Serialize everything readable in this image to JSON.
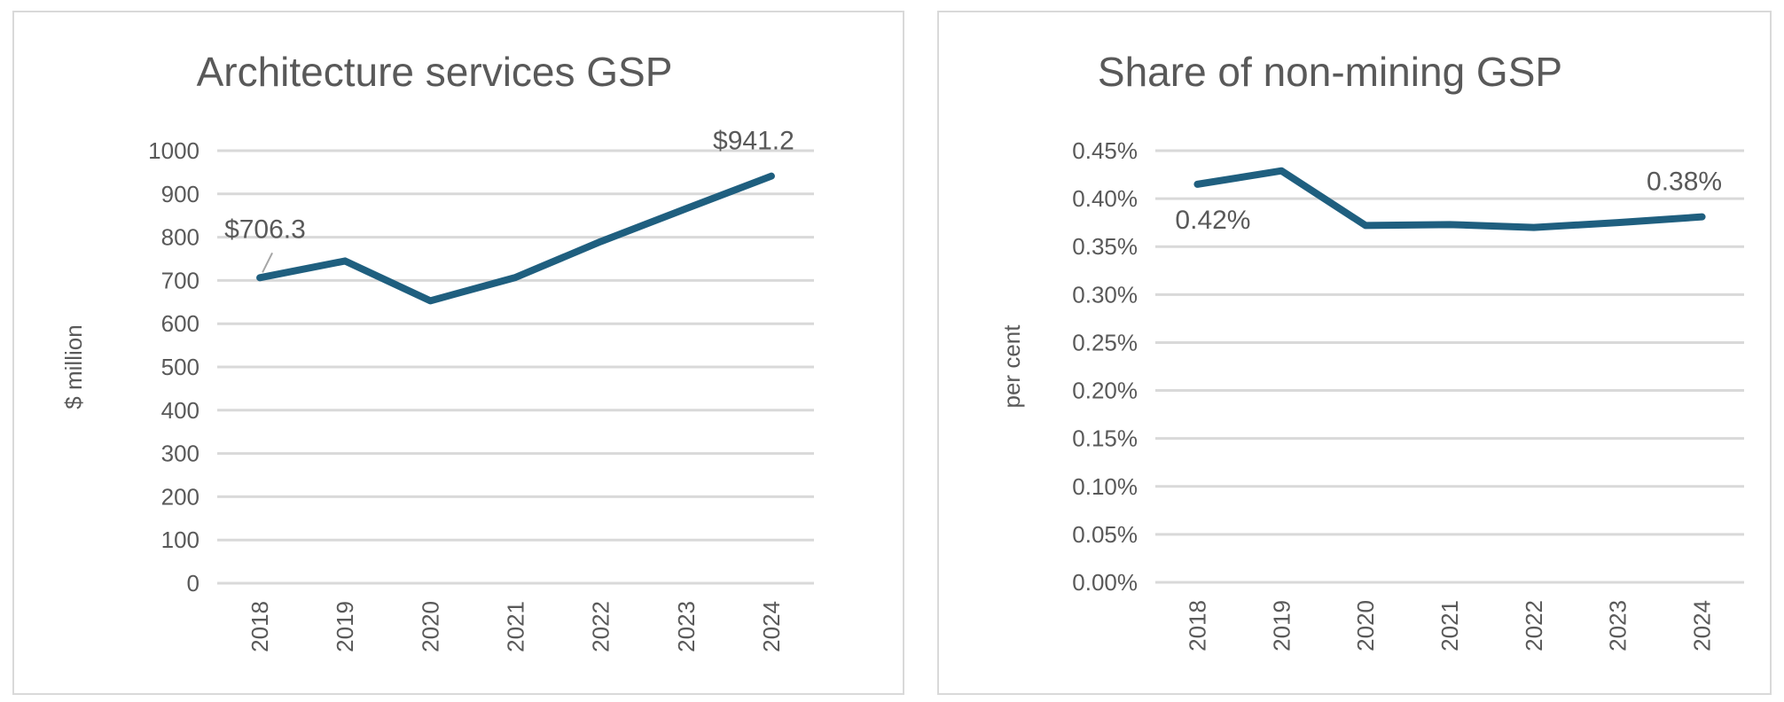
{
  "chart_data": [
    {
      "type": "line",
      "title": "Architecture services GSP",
      "xlabel": "",
      "ylabel": "$ million",
      "categories": [
        "2018",
        "2019",
        "2020",
        "2021",
        "2022",
        "2023",
        "2024"
      ],
      "values": [
        706.3,
        745,
        653,
        707,
        790,
        866,
        941.2
      ],
      "ylim": [
        0,
        1000
      ],
      "yticks": [
        0,
        100,
        200,
        300,
        400,
        500,
        600,
        700,
        800,
        900,
        1000
      ],
      "ytick_labels": [
        "0",
        "100",
        "200",
        "300",
        "400",
        "500",
        "600",
        "700",
        "800",
        "900",
        "1000"
      ],
      "grid": true,
      "line_color": "#1F5F7F",
      "annotations": [
        {
          "category": "2018",
          "text": "$706.3"
        },
        {
          "category": "2024",
          "text": "$941.2"
        }
      ]
    },
    {
      "type": "line",
      "title": "Share of non-mining GSP",
      "xlabel": "",
      "ylabel": "per cent",
      "categories": [
        "2018",
        "2019",
        "2020",
        "2021",
        "2022",
        "2023",
        "2024"
      ],
      "values": [
        0.415,
        0.429,
        0.372,
        0.373,
        0.37,
        0.375,
        0.381
      ],
      "ylim": [
        0,
        0.45
      ],
      "yticks": [
        0,
        0.05,
        0.1,
        0.15,
        0.2,
        0.25,
        0.3,
        0.35,
        0.4,
        0.45
      ],
      "ytick_labels": [
        "0.00%",
        "0.05%",
        "0.10%",
        "0.15%",
        "0.20%",
        "0.25%",
        "0.30%",
        "0.35%",
        "0.40%",
        "0.45%"
      ],
      "grid": true,
      "line_color": "#1F5F7F",
      "annotations": [
        {
          "category": "2018",
          "text": "0.42%"
        },
        {
          "category": "2024",
          "text": "0.38%"
        }
      ]
    }
  ]
}
